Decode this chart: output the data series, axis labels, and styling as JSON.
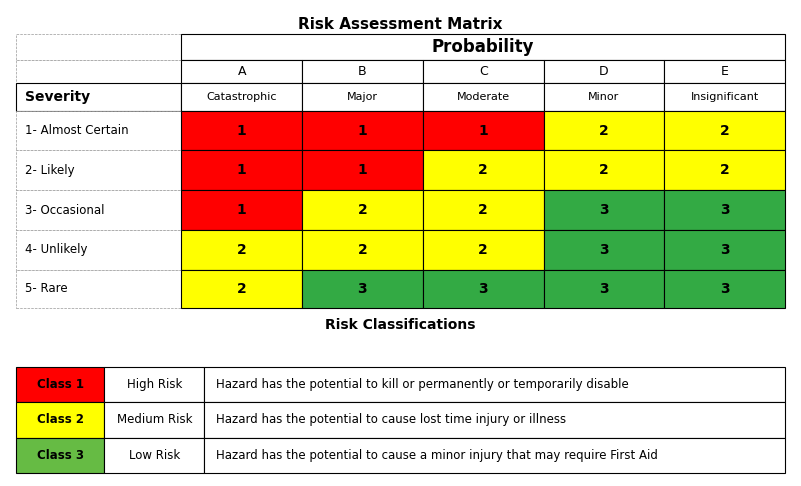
{
  "title": "Risk Assessment Matrix",
  "title2": "Risk Classifications",
  "probability_label": "Probability",
  "severity_label": "Severity",
  "col_letters": [
    "A",
    "B",
    "C",
    "D",
    "E"
  ],
  "col_names": [
    "Catastrophic",
    "Major",
    "Moderate",
    "Minor",
    "Insignificant"
  ],
  "row_names": [
    "1- Almost Certain",
    "2- Likely",
    "3- Occasional",
    "4- Unlikely",
    "5- Rare"
  ],
  "matrix_values": [
    [
      "1",
      "1",
      "1",
      "2",
      "2"
    ],
    [
      "1",
      "1",
      "2",
      "2",
      "2"
    ],
    [
      "1",
      "2",
      "2",
      "3",
      "3"
    ],
    [
      "2",
      "2",
      "2",
      "3",
      "3"
    ],
    [
      "2",
      "3",
      "3",
      "3",
      "3"
    ]
  ],
  "matrix_colors": [
    [
      "#FF0000",
      "#FF0000",
      "#FF0000",
      "#FFFF00",
      "#FFFF00"
    ],
    [
      "#FF0000",
      "#FF0000",
      "#FFFF00",
      "#FFFF00",
      "#FFFF00"
    ],
    [
      "#FF0000",
      "#FFFF00",
      "#FFFF00",
      "#33AA44",
      "#33AA44"
    ],
    [
      "#FFFF00",
      "#FFFF00",
      "#FFFF00",
      "#33AA44",
      "#33AA44"
    ],
    [
      "#FFFF00",
      "#33AA44",
      "#33AA44",
      "#33AA44",
      "#33AA44"
    ]
  ],
  "class_colors": [
    "#FF0000",
    "#FFFF00",
    "#66BB44"
  ],
  "class_labels": [
    "Class 1",
    "Class 2",
    "Class 3"
  ],
  "risk_levels": [
    "High Risk",
    "Medium Risk",
    "Low Risk"
  ],
  "risk_descriptions": [
    "Hazard has the potential to kill or permanently or temporarily disable",
    "Hazard has the potential to cause lost time injury or illness",
    "Hazard has the potential to cause a minor injury that may require First Aid"
  ]
}
